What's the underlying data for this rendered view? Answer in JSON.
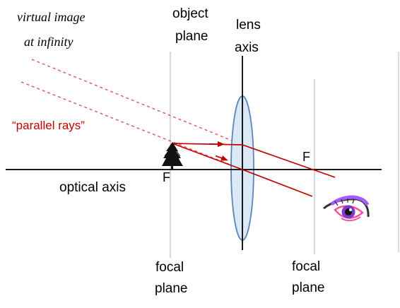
{
  "labels": {
    "virtual_image_line1": "virtual image",
    "virtual_image_line2": "at infinity",
    "object_plane_line1": "object",
    "object_plane_line2": "plane",
    "lens_axis_line1": "lens",
    "lens_axis_line2": "axis",
    "parallel_rays": "“parallel rays”",
    "focal_point_right": "F",
    "focal_point_left": "F",
    "optical_axis": "optical axis",
    "focal_plane_left_line1": "focal",
    "focal_plane_left_line2": "plane",
    "focal_plane_right_line1": "focal",
    "focal_plane_right_line2": "plane"
  },
  "colors": {
    "ray": "#c00000",
    "dashed_ray": "#e06060",
    "axis": "#000000",
    "plane": "#c8c8c8",
    "lens_fill": "#dbe8f5",
    "lens_stroke": "#5b86b8",
    "object": "#111111",
    "text": "#000000"
  },
  "icons": {
    "object": "tree-icon",
    "observer": "eye-icon"
  }
}
